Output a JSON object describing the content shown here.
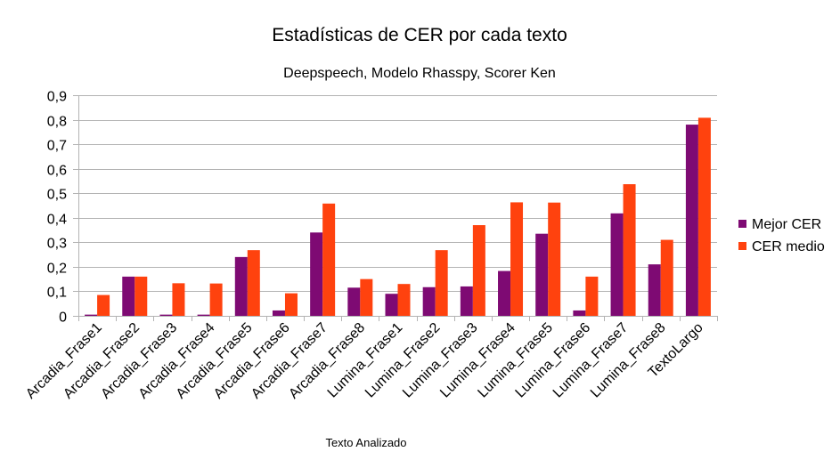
{
  "chart_data": {
    "type": "bar",
    "title": "Estadísticas de CER por cada texto",
    "subtitle": "Deepspeech, Modelo Rhasspy, Scorer Ken",
    "xlabel": "Texto Analizado",
    "ylabel": "",
    "ylim": [
      0,
      0.9
    ],
    "ytick_step": 0.1,
    "yticks": [
      "0",
      "0,1",
      "0,2",
      "0,3",
      "0,4",
      "0,5",
      "0,6",
      "0,7",
      "0,8",
      "0,9"
    ],
    "grid": "horizontal",
    "legend_position": "right",
    "categories": [
      "Arcadia_Frase1",
      "Arcadia_Frase2",
      "Arcadia_Frase3",
      "Arcadia_Frase4",
      "Arcadia_Frase5",
      "Arcadia_Frase6",
      "Arcadia_Frase7",
      "Arcadia_Frase8",
      "Lumina_Frase1",
      "Lumina_Frase2",
      "Lumina_Frase3",
      "Lumina_Frase4",
      "Lumina_Frase5",
      "Lumina_Frase6",
      "Lumina_Frase7",
      "Lumina_Frase8",
      "TextoLargo"
    ],
    "series": [
      {
        "name": "Mejor CER",
        "color": "#7e0a73",
        "values": [
          0.005,
          0.16,
          0.005,
          0.005,
          0.24,
          0.022,
          0.34,
          0.115,
          0.09,
          0.117,
          0.12,
          0.183,
          0.335,
          0.022,
          0.418,
          0.21,
          0.78
        ]
      },
      {
        "name": "CER medio",
        "color": "#ff420e",
        "values": [
          0.085,
          0.16,
          0.133,
          0.132,
          0.268,
          0.092,
          0.458,
          0.15,
          0.13,
          0.268,
          0.37,
          0.463,
          0.462,
          0.16,
          0.537,
          0.31,
          0.808
        ]
      }
    ]
  }
}
